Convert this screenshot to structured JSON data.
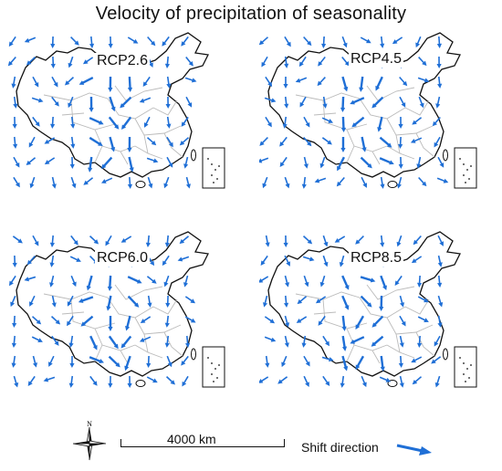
{
  "title": "Velocity of precipitation of seasonality",
  "panels": [
    {
      "label": "RCP2.6"
    },
    {
      "label": "RCP4.5"
    },
    {
      "label": "RCP6.0"
    },
    {
      "label": "RCP8.5"
    }
  ],
  "compass_label": "N",
  "scale_label": "4000 km",
  "legend_label": "Shift direction",
  "colors": {
    "arrow": "#1f6fd6",
    "border": "#111111",
    "provinces": "#bbbbbb"
  }
}
